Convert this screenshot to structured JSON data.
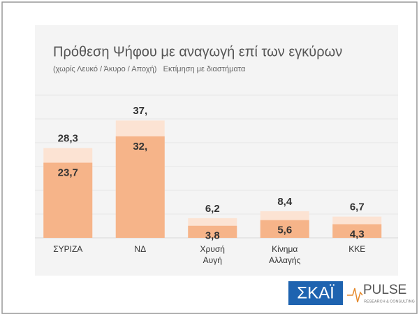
{
  "chart_data": {
    "type": "bar",
    "title": "Πρόθεση Ψήφου με αναγωγή επί των εγκύρων",
    "subtitle": "(χωρίς Λευκό / Άκυρο / Αποχή)   Εκτίμηση με διαστήματα",
    "categories": [
      "ΣΥΡΙΖΑ",
      "ΝΔ",
      "Χρυσή Αυγή",
      "Κίνημα Αλλαγής",
      "ΚΚΕ"
    ],
    "values": [
      23.7,
      32,
      3.8,
      5.6,
      4.3
    ],
    "value_labels": [
      "23,7",
      "32,",
      "3,8",
      "5,6",
      "4,3"
    ],
    "upper_values": [
      28.3,
      37,
      6.2,
      8.4,
      6.7
    ],
    "upper_value_labels": [
      "28,3",
      "37,",
      "6,2",
      "8,4",
      "6,7"
    ],
    "color": "#f6b489",
    "upper_color": "#fce3d3",
    "ylim": [
      0,
      45
    ],
    "yticks": [
      0,
      7.5,
      15,
      22.5,
      30,
      37.5,
      45
    ],
    "grid": true
  },
  "logos": {
    "broadcaster": "ΣΚΑΪ",
    "pollster": "PULSE",
    "pollster_tagline": "RESEARCH & CONSULTING"
  }
}
